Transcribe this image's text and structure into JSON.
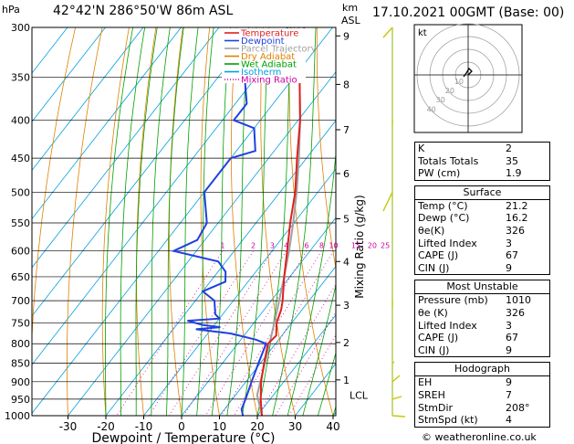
{
  "header": {
    "hpa_label": "hPa",
    "location": "42°42'N  286°50'W  86m  ASL",
    "km_label": "km",
    "asl_label": "ASL",
    "datetime": "17.10.2021  00GMT  (Base: 00)"
  },
  "footer": {
    "credit": "© weatheronline.co.uk"
  },
  "legend": {
    "items": [
      {
        "label": "Temperature",
        "color": "#e02020",
        "style": "solid"
      },
      {
        "label": "Dewpoint",
        "color": "#2040e0",
        "style": "solid"
      },
      {
        "label": "Parcel Trajectory",
        "color": "#a0a0a0",
        "style": "solid"
      },
      {
        "label": "Dry Adiabat",
        "color": "#e08000",
        "style": "solid"
      },
      {
        "label": "Wet Adiabat",
        "color": "#00a000",
        "style": "solid"
      },
      {
        "label": "Isotherm",
        "color": "#00a0e0",
        "style": "solid"
      },
      {
        "label": "Mixing Ratio",
        "color": "#d000a0",
        "style": "dotted"
      }
    ]
  },
  "chart_data": {
    "type": "line",
    "xlabel": "Dewpoint / Temperature (°C)",
    "ylabel_right": "Mixing Ratio (g/kg)",
    "pressure_levels": [
      300,
      350,
      400,
      450,
      500,
      550,
      600,
      650,
      700,
      750,
      800,
      850,
      900,
      950,
      1000
    ],
    "x_ticks": [
      -30,
      -20,
      -10,
      0,
      10,
      20,
      30,
      40
    ],
    "xlim": [
      -35,
      40
    ],
    "plim": [
      1000,
      300
    ],
    "km_ticks": [
      {
        "label": "9",
        "p": 308
      },
      {
        "label": "8",
        "p": 358
      },
      {
        "label": "7",
        "p": 412
      },
      {
        "label": "6",
        "p": 472
      },
      {
        "label": "5",
        "p": 543
      },
      {
        "label": "4",
        "p": 620
      },
      {
        "label": "3",
        "p": 710
      },
      {
        "label": "2",
        "p": 797
      },
      {
        "label": "1",
        "p": 895
      }
    ],
    "lcl": {
      "label": "LCL",
      "p": 938
    },
    "mixing_ratio_labels": [
      "1",
      "2",
      "3",
      "4",
      "6",
      "8",
      "10",
      "15",
      "20",
      "25"
    ],
    "mixing_ratio_values": [
      1,
      2,
      3,
      4,
      6,
      8,
      10,
      15,
      20,
      25
    ],
    "temperature": [
      {
        "p": 1000,
        "t": 21.2
      },
      {
        "p": 950,
        "t": 17.5
      },
      {
        "p": 900,
        "t": 14.0
      },
      {
        "p": 850,
        "t": 11.0
      },
      {
        "p": 800,
        "t": 8.0
      },
      {
        "p": 780,
        "t": 8.5
      },
      {
        "p": 750,
        "t": 6.0
      },
      {
        "p": 720,
        "t": 4.5
      },
      {
        "p": 700,
        "t": 3.0
      },
      {
        "p": 650,
        "t": -1.5
      },
      {
        "p": 600,
        "t": -6.0
      },
      {
        "p": 550,
        "t": -11.0
      },
      {
        "p": 500,
        "t": -16.0
      },
      {
        "p": 450,
        "t": -22.5
      },
      {
        "p": 400,
        "t": -29.5
      },
      {
        "p": 350,
        "t": -38.5
      },
      {
        "p": 300,
        "t": -47.5
      }
    ],
    "dewpoint": [
      {
        "p": 1000,
        "t": 16.2
      },
      {
        "p": 980,
        "t": 14.5
      },
      {
        "p": 950,
        "t": 13.5
      },
      {
        "p": 900,
        "t": 11.5
      },
      {
        "p": 850,
        "t": 9.5
      },
      {
        "p": 800,
        "t": 7.5
      },
      {
        "p": 790,
        "t": 4.0
      },
      {
        "p": 775,
        "t": -4.0
      },
      {
        "p": 765,
        "t": -14.0
      },
      {
        "p": 760,
        "t": -8.0
      },
      {
        "p": 755,
        "t": -13.0
      },
      {
        "p": 745,
        "t": -18.0
      },
      {
        "p": 740,
        "t": -10.0
      },
      {
        "p": 730,
        "t": -12.0
      },
      {
        "p": 700,
        "t": -15.0
      },
      {
        "p": 680,
        "t": -20.0
      },
      {
        "p": 660,
        "t": -16.0
      },
      {
        "p": 640,
        "t": -18.0
      },
      {
        "p": 620,
        "t": -22.0
      },
      {
        "p": 600,
        "t": -36.0
      },
      {
        "p": 580,
        "t": -32.0
      },
      {
        "p": 550,
        "t": -33.0
      },
      {
        "p": 500,
        "t": -40.0
      },
      {
        "p": 450,
        "t": -40.0
      },
      {
        "p": 440,
        "t": -35.0
      },
      {
        "p": 410,
        "t": -40.0
      },
      {
        "p": 400,
        "t": -47.0
      },
      {
        "p": 380,
        "t": -47.0
      },
      {
        "p": 350,
        "t": -53.0
      },
      {
        "p": 340,
        "t": -46.0
      },
      {
        "p": 320,
        "t": -47.0
      },
      {
        "p": 300,
        "t": -52.0
      }
    ],
    "parcel": [
      {
        "p": 1000,
        "t": 21.2
      },
      {
        "p": 950,
        "t": 16.8
      },
      {
        "p": 938,
        "t": 15.7
      },
      {
        "p": 900,
        "t": 13.8
      },
      {
        "p": 850,
        "t": 11.2
      },
      {
        "p": 800,
        "t": 8.4
      },
      {
        "p": 750,
        "t": 5.4
      },
      {
        "p": 700,
        "t": 2.1
      },
      {
        "p": 650,
        "t": -1.5
      },
      {
        "p": 600,
        "t": -5.5
      },
      {
        "p": 550,
        "t": -10.2
      },
      {
        "p": 500,
        "t": -15.6
      },
      {
        "p": 450,
        "t": -22.0
      },
      {
        "p": 400,
        "t": -29.5
      },
      {
        "p": 350,
        "t": -38.5
      },
      {
        "p": 300,
        "t": -49.0
      }
    ]
  },
  "hodograph": {
    "label": "kt",
    "ring_labels": [
      "10",
      "20",
      "30",
      "40"
    ]
  },
  "indices": {
    "rows": [
      {
        "label": "K",
        "value": "2"
      },
      {
        "label": "Totals Totals",
        "value": "35"
      },
      {
        "label": "PW (cm)",
        "value": "1.9"
      }
    ]
  },
  "surface": {
    "title": "Surface",
    "rows": [
      {
        "label": "Temp (°C)",
        "value": "21.2"
      },
      {
        "label": "Dewp (°C)",
        "value": "16.2"
      },
      {
        "label": "θe(K)",
        "value": "326"
      },
      {
        "label": "Lifted Index",
        "value": "3"
      },
      {
        "label": "CAPE (J)",
        "value": "67"
      },
      {
        "label": "CIN (J)",
        "value": "9"
      }
    ]
  },
  "most_unstable": {
    "title": "Most Unstable",
    "rows": [
      {
        "label": "Pressure (mb)",
        "value": "1010"
      },
      {
        "label": "θe (K)",
        "value": "326"
      },
      {
        "label": "Lifted Index",
        "value": "3"
      },
      {
        "label": "CAPE (J)",
        "value": "67"
      },
      {
        "label": "CIN (J)",
        "value": "9"
      }
    ]
  },
  "hodograph_table": {
    "title": "Hodograph",
    "rows": [
      {
        "label": "EH",
        "value": "9"
      },
      {
        "label": "SREH",
        "value": "7"
      },
      {
        "label": "StmDir",
        "value": "208°"
      },
      {
        "label": "StmSpd (kt)",
        "value": "4"
      }
    ]
  }
}
